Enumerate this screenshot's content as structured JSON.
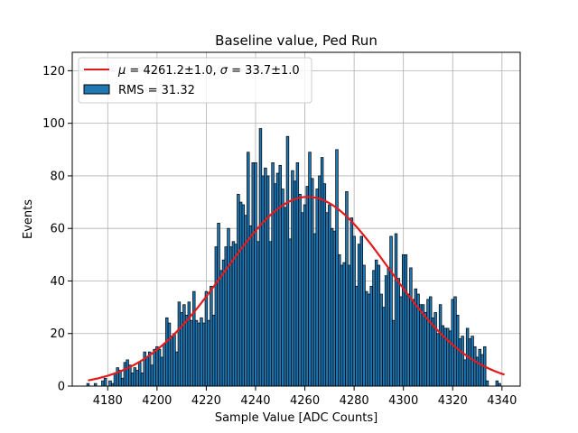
{
  "chart_data": {
    "type": "bar",
    "title": "Baseline value, Ped Run",
    "xlabel": "Sample Value [ADC Counts]",
    "ylabel": "Events",
    "xlim": [
      4165.6,
      4347.4
    ],
    "ylim": [
      0,
      127
    ],
    "bin_width": 1,
    "x_ticks": [
      4180,
      4200,
      4220,
      4240,
      4260,
      4280,
      4300,
      4320,
      4340
    ],
    "y_ticks": [
      0,
      20,
      40,
      60,
      80,
      100,
      120
    ],
    "grid": true,
    "legend_position": "top-left",
    "colors": {
      "bars": "#1f77b4",
      "bar_edge": "#000000",
      "fit": "#e31a1c",
      "grid": "#b0b0b0"
    },
    "series": [
      {
        "name": "RMS = 31.32",
        "kind": "histogram",
        "x": [
          4172,
          4175,
          4178,
          4179,
          4180,
          4181,
          4182,
          4183,
          4184,
          4185,
          4186,
          4187,
          4188,
          4189,
          4190,
          4191,
          4192,
          4193,
          4194,
          4195,
          4196,
          4197,
          4198,
          4199,
          4200,
          4201,
          4202,
          4203,
          4204,
          4205,
          4206,
          4207,
          4208,
          4209,
          4210,
          4211,
          4212,
          4213,
          4214,
          4215,
          4216,
          4217,
          4218,
          4219,
          4220,
          4221,
          4222,
          4223,
          4224,
          4225,
          4226,
          4227,
          4228,
          4229,
          4230,
          4231,
          4232,
          4233,
          4234,
          4235,
          4236,
          4237,
          4238,
          4239,
          4240,
          4241,
          4242,
          4243,
          4244,
          4245,
          4246,
          4247,
          4248,
          4249,
          4250,
          4251,
          4252,
          4253,
          4254,
          4255,
          4256,
          4257,
          4258,
          4259,
          4260,
          4261,
          4262,
          4263,
          4264,
          4265,
          4266,
          4267,
          4268,
          4269,
          4270,
          4271,
          4272,
          4273,
          4274,
          4275,
          4276,
          4277,
          4278,
          4279,
          4280,
          4281,
          4282,
          4283,
          4284,
          4285,
          4286,
          4287,
          4288,
          4289,
          4290,
          4291,
          4292,
          4293,
          4294,
          4295,
          4296,
          4297,
          4298,
          4299,
          4300,
          4301,
          4302,
          4303,
          4304,
          4305,
          4306,
          4307,
          4308,
          4309,
          4310,
          4311,
          4312,
          4313,
          4314,
          4315,
          4316,
          4317,
          4318,
          4319,
          4320,
          4321,
          4322,
          4323,
          4324,
          4325,
          4326,
          4327,
          4328,
          4329,
          4330,
          4331,
          4332,
          4333,
          4334,
          4338,
          4339
        ],
        "values": [
          1,
          1,
          2,
          3,
          0,
          2,
          1,
          5,
          7,
          6,
          3,
          9,
          10,
          8,
          5,
          7,
          6,
          9,
          5,
          13,
          11,
          13,
          8,
          14,
          15,
          14,
          11,
          16,
          26,
          24,
          19,
          20,
          13,
          32,
          28,
          31,
          27,
          32,
          25,
          36,
          25,
          24,
          26,
          24,
          36,
          25,
          38,
          27,
          53,
          62,
          44,
          48,
          53,
          60,
          53,
          55,
          54,
          73,
          70,
          69,
          65,
          89,
          61,
          85,
          85,
          55,
          98,
          80,
          83,
          80,
          55,
          85,
          77,
          81,
          84,
          75,
          68,
          95,
          56,
          82,
          78,
          85,
          73,
          66,
          69,
          76,
          89,
          79,
          58,
          75,
          80,
          87,
          77,
          66,
          69,
          60,
          59,
          90,
          50,
          46,
          47,
          74,
          46,
          64,
          57,
          38,
          54,
          57,
          46,
          36,
          35,
          38,
          44,
          48,
          46,
          35,
          30,
          42,
          45,
          57,
          25,
          58,
          41,
          34,
          50,
          50,
          35,
          45,
          33,
          37,
          35,
          31,
          31,
          28,
          33,
          34,
          26,
          28,
          20,
          31,
          23,
          22,
          22,
          21,
          33,
          34,
          27,
          18,
          19,
          10,
          22,
          18,
          19,
          15,
          11,
          14,
          12,
          15,
          2,
          2,
          1
        ]
      },
      {
        "name": "$\\mu = $4261.2±1.0, $\\sigma = $33.7±1.0",
        "kind": "gaussian-fit",
        "amplitude": 72,
        "mu": 4261.2,
        "sigma": 33.7,
        "x_range": [
          4172,
          4341
        ]
      }
    ]
  }
}
